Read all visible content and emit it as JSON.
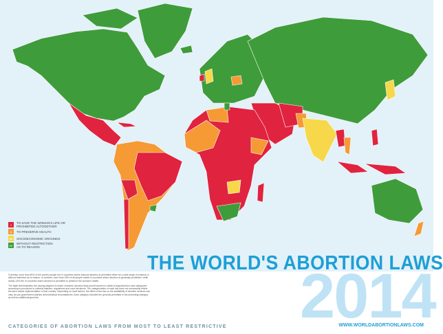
{
  "title": "THE WORLD'S ABORTION LAWS",
  "year": "2014",
  "website": "WWW.WORLDABORTIONLAWS.COM",
  "footer": "CATEGORIES OF ABORTION LAWS FROM MOST TO LEAST RESTRICTIVE",
  "legend": [
    {
      "numeral": "I",
      "lines": [
        "TO SAVE THE WOMAN'S LIFE OR",
        "PROHIBITED ALTOGETHER"
      ]
    },
    {
      "numeral": "II",
      "lines": [
        "TO PRESERVE HEALTH"
      ]
    },
    {
      "numeral": "III",
      "lines": [
        "SOCIOECONOMIC GROUNDS"
      ]
    },
    {
      "numeral": "IV",
      "lines": [
        "WITHOUT RESTRICTION",
        "AS TO REASON"
      ]
    }
  ],
  "intro": [
    "Currently, more than 60% of the world's people live in countries where induced abortion is permitted either for a wide range of reasons or without restriction as to reason. In contrast, more than 25% of all people reside in countries where abortion is generally prohibited, while nearly 14% live in countries where abortion is permitted to preserve the woman's health.",
    "The table that illustrates the varying degrees to which countries' abortion laws permit women to obtain a legal abortion uses categories according to provisions in national statutes, regulations and court decisions. The categorization of each law does not necessarily reflect the law's actual implementation in that country. Depending on local factors, the effect of the law on the availability of abortion services can vary, as can government policies and individual circumstances. Each category includes the grounds permitted in the preceding category as well as additional grounds."
  ]
}
